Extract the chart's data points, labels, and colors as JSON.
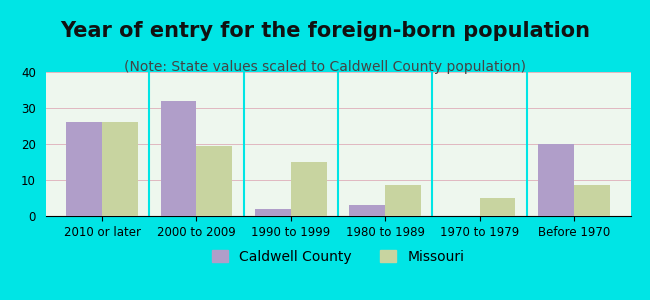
{
  "title": "Year of entry for the foreign-born population",
  "subtitle": "(Note: State values scaled to Caldwell County population)",
  "categories": [
    "2010 or later",
    "2000 to 2009",
    "1990 to 1999",
    "1980 to 1989",
    "1970 to 1979",
    "Before 1970"
  ],
  "caldwell_values": [
    26,
    32,
    2,
    3,
    0,
    20
  ],
  "missouri_values": [
    26,
    19.5,
    15,
    8.5,
    5,
    8.5
  ],
  "caldwell_color": "#b09ec9",
  "missouri_color": "#c8d4a0",
  "background_color": "#00e5e5",
  "plot_bg_start": "#e8f5e0",
  "plot_bg_end": "#f0faff",
  "ylim": [
    0,
    40
  ],
  "yticks": [
    0,
    10,
    20,
    30,
    40
  ],
  "bar_width": 0.38,
  "legend_caldwell": "Caldwell County",
  "legend_missouri": "Missouri",
  "title_fontsize": 15,
  "subtitle_fontsize": 10,
  "tick_fontsize": 8.5,
  "legend_fontsize": 10
}
